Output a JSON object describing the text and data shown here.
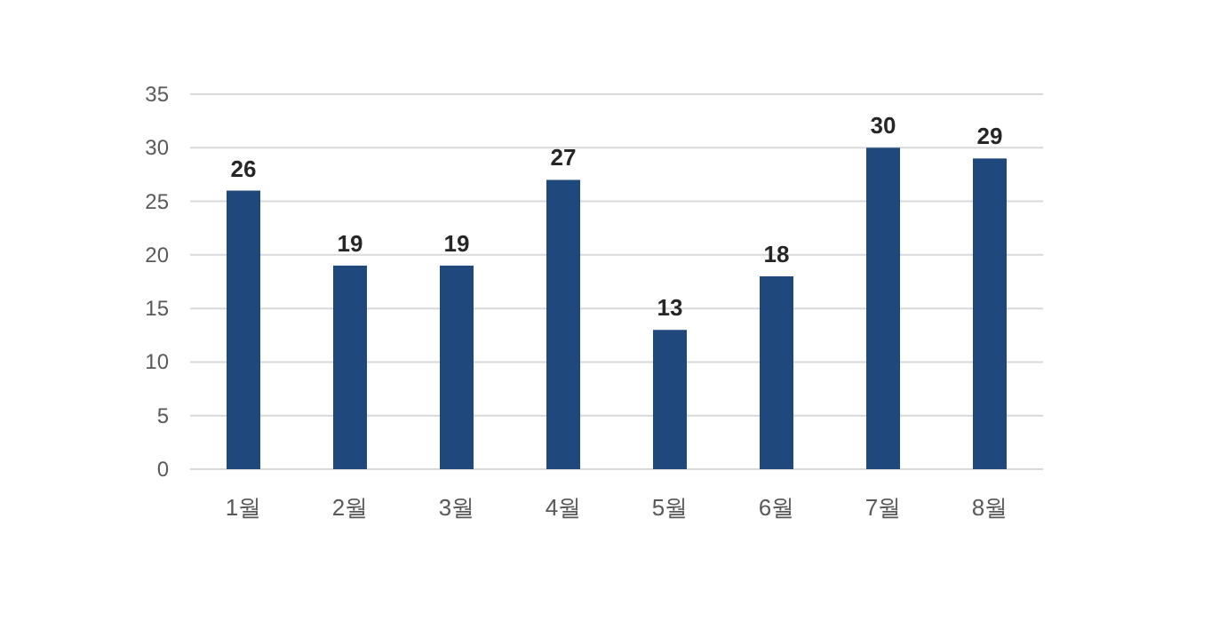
{
  "chart_data": {
    "type": "bar",
    "categories": [
      "1월",
      "2월",
      "3월",
      "4월",
      "5월",
      "6월",
      "7월",
      "8월"
    ],
    "values": [
      26,
      19,
      19,
      27,
      13,
      18,
      30,
      29
    ],
    "color": "#1f497d",
    "ylim": [
      0,
      35
    ],
    "yticks": [
      0,
      5,
      10,
      15,
      20,
      25,
      30,
      35
    ],
    "grid": "y",
    "data_labels": true
  }
}
